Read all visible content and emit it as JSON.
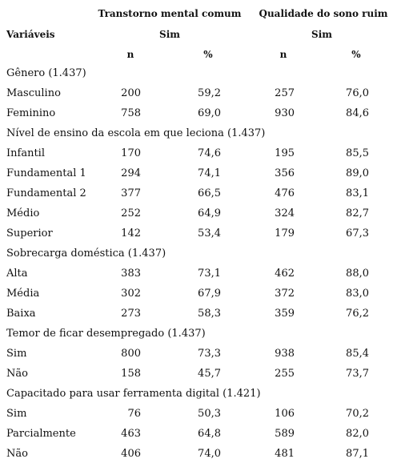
{
  "header": {
    "group_1": "Transtorno mental comum",
    "group_2": "Qualidade do sono ruim",
    "variables": "Variáveis",
    "sim_1": "Sim",
    "sim_2": "Sim",
    "n_1": "n",
    "pct_1": "%",
    "n_2": "n",
    "pct_2": "%"
  },
  "table": {
    "groups": [
      {
        "label": "Gênero (1.437)",
        "rows": [
          [
            "Masculino",
            "200",
            "59,2",
            "257",
            "76,0"
          ],
          [
            "Feminino",
            "758",
            "69,0",
            "930",
            "84,6"
          ]
        ]
      },
      {
        "label": "Nível de ensino da escola em que leciona (1.437)",
        "rows": [
          [
            "Infantil",
            "170",
            "74,6",
            "195",
            "85,5"
          ],
          [
            "Fundamental 1",
            "294",
            "74,1",
            "356",
            "89,0"
          ],
          [
            "Fundamental 2",
            "377",
            "66,5",
            "476",
            "83,1"
          ],
          [
            "Médio",
            "252",
            "64,9",
            "324",
            "82,7"
          ],
          [
            "Superior",
            "142",
            "53,4",
            "179",
            "67,3"
          ]
        ]
      },
      {
        "label": "Sobrecarga doméstica (1.437)",
        "rows": [
          [
            "Alta",
            "383",
            "73,1",
            "462",
            "88,0"
          ],
          [
            "Média",
            "302",
            "67,9",
            "372",
            "83,0"
          ],
          [
            "Baixa",
            "273",
            "58,3",
            "359",
            "76,2"
          ]
        ]
      },
      {
        "label": "Temor de ficar desempregado (1.437)",
        "rows": [
          [
            "Sim",
            "800",
            "73,3",
            "938",
            "85,4"
          ],
          [
            "Não",
            "158",
            "45,7",
            "255",
            "73,7"
          ]
        ]
      },
      {
        "label": "Capacitado para usar ferramenta digital (1.421)",
        "rows": [
          [
            "Sim",
            "76",
            "50,3",
            "106",
            "70,2"
          ],
          [
            "Parcialmente",
            "463",
            "64,8",
            "589",
            "82,0"
          ],
          [
            "Não",
            "406",
            "74,0",
            "481",
            "87,1"
          ]
        ]
      }
    ]
  }
}
